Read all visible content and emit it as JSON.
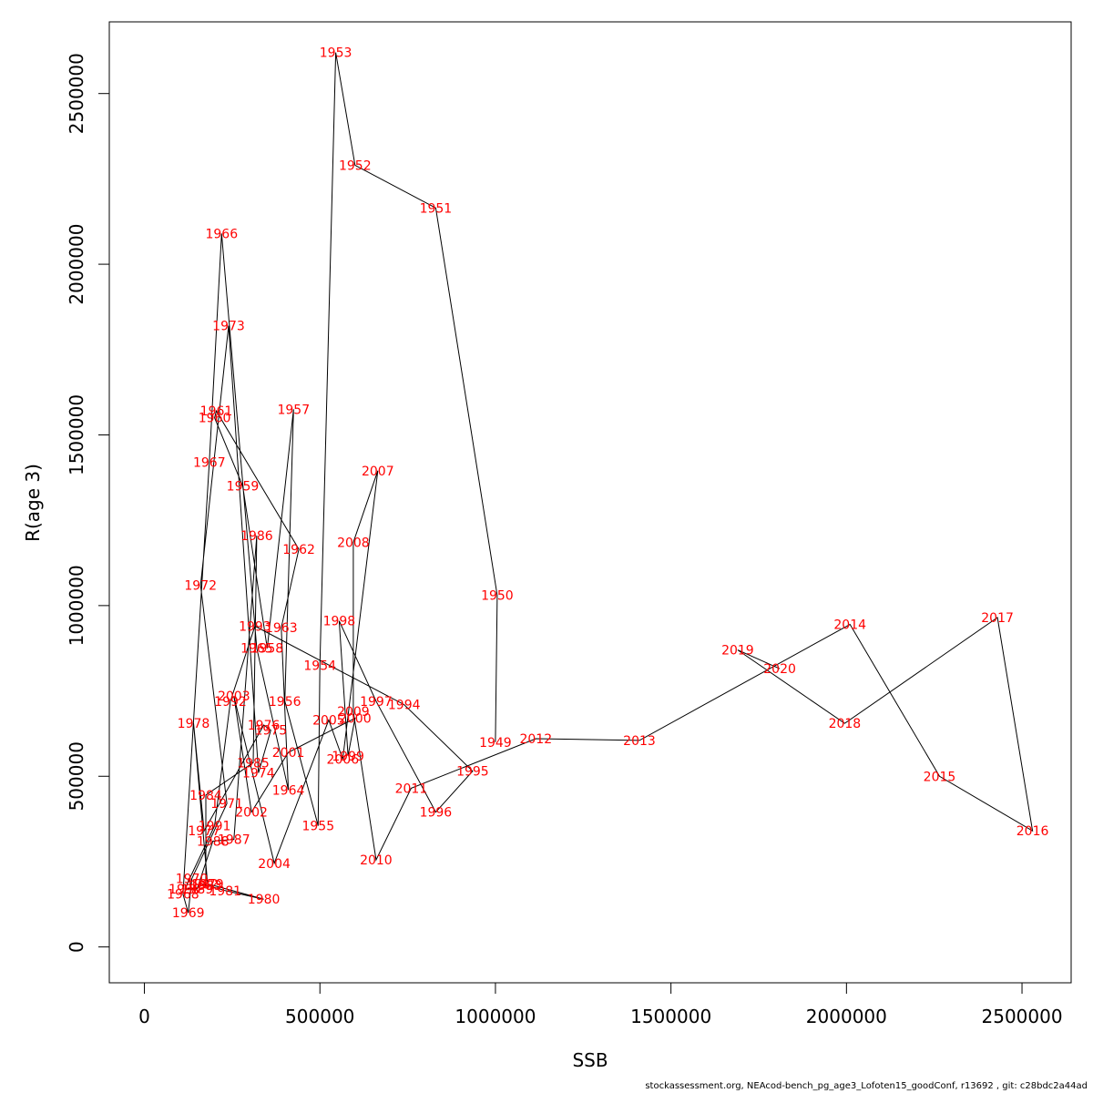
{
  "footer": "stockassessment.org, NEAcod-bench_pg_age3_Lofoten15_goodConf, r13692 , git: c28bdc2a44ad",
  "colors": {
    "label": "#ff0000",
    "line": "#000000",
    "axis": "#000000"
  },
  "chart_data": {
    "type": "line",
    "xlabel": "SSB",
    "ylabel": "R(age 3)",
    "xlim": [
      -100000,
      2640000
    ],
    "ylim": [
      -105000,
      2710000
    ],
    "xticks": [
      0,
      500000,
      1000000,
      1500000,
      2000000,
      2500000
    ],
    "yticks": [
      0,
      500000,
      1000000,
      1500000,
      2000000,
      2500000
    ],
    "points": [
      {
        "year": "1949",
        "x": 1000000,
        "y": 600000
      },
      {
        "year": "1950",
        "x": 1005000,
        "y": 1030000
      },
      {
        "year": "1951",
        "x": 830000,
        "y": 2165000
      },
      {
        "year": "1952",
        "x": 600000,
        "y": 2290000
      },
      {
        "year": "1953",
        "x": 545000,
        "y": 2620000
      },
      {
        "year": "1954",
        "x": 500000,
        "y": 825000
      },
      {
        "year": "1955",
        "x": 495000,
        "y": 355000
      },
      {
        "year": "1956",
        "x": 400000,
        "y": 720000
      },
      {
        "year": "1957",
        "x": 425000,
        "y": 1575000
      },
      {
        "year": "1958",
        "x": 350000,
        "y": 875000
      },
      {
        "year": "1959",
        "x": 280000,
        "y": 1350000
      },
      {
        "year": "1960",
        "x": 200000,
        "y": 1550000
      },
      {
        "year": "1961",
        "x": 205000,
        "y": 1570000
      },
      {
        "year": "1962",
        "x": 440000,
        "y": 1165000
      },
      {
        "year": "1963",
        "x": 390000,
        "y": 935000
      },
      {
        "year": "1964",
        "x": 410000,
        "y": 460000
      },
      {
        "year": "1965",
        "x": 320000,
        "y": 875000
      },
      {
        "year": "1966",
        "x": 220000,
        "y": 2090000
      },
      {
        "year": "1967",
        "x": 185000,
        "y": 1420000
      },
      {
        "year": "1968",
        "x": 110000,
        "y": 155000
      },
      {
        "year": "1969",
        "x": 125000,
        "y": 100000
      },
      {
        "year": "1970",
        "x": 135000,
        "y": 200000
      },
      {
        "year": "1971",
        "x": 235000,
        "y": 420000
      },
      {
        "year": "1972",
        "x": 160000,
        "y": 1060000
      },
      {
        "year": "1973",
        "x": 240000,
        "y": 1820000
      },
      {
        "year": "1974",
        "x": 325000,
        "y": 510000
      },
      {
        "year": "1975",
        "x": 360000,
        "y": 635000
      },
      {
        "year": "1976",
        "x": 340000,
        "y": 650000
      },
      {
        "year": "1977",
        "x": 170000,
        "y": 340000
      },
      {
        "year": "1978",
        "x": 140000,
        "y": 655000
      },
      {
        "year": "1979",
        "x": 180000,
        "y": 185000
      },
      {
        "year": "1980",
        "x": 340000,
        "y": 140000
      },
      {
        "year": "1981",
        "x": 230000,
        "y": 165000
      },
      {
        "year": "1982",
        "x": 165000,
        "y": 185000
      },
      {
        "year": "1983",
        "x": 175000,
        "y": 180000
      },
      {
        "year": "1984",
        "x": 175000,
        "y": 445000
      },
      {
        "year": "1985",
        "x": 310000,
        "y": 540000
      },
      {
        "year": "1986",
        "x": 320000,
        "y": 1205000
      },
      {
        "year": "1987",
        "x": 255000,
        "y": 315000
      },
      {
        "year": "1988",
        "x": 195000,
        "y": 310000
      },
      {
        "year": "1989",
        "x": 150000,
        "y": 170000
      },
      {
        "year": "1990",
        "x": 115000,
        "y": 170000
      },
      {
        "year": "1991",
        "x": 200000,
        "y": 355000
      },
      {
        "year": "1992",
        "x": 245000,
        "y": 720000
      },
      {
        "year": "1993",
        "x": 315000,
        "y": 940000
      },
      {
        "year": "1994",
        "x": 740000,
        "y": 710000
      },
      {
        "year": "1995",
        "x": 935000,
        "y": 515000
      },
      {
        "year": "1996",
        "x": 830000,
        "y": 395000
      },
      {
        "year": "1997",
        "x": 660000,
        "y": 720000
      },
      {
        "year": "1998",
        "x": 555000,
        "y": 955000
      },
      {
        "year": "1999",
        "x": 580000,
        "y": 560000
      },
      {
        "year": "2000",
        "x": 600000,
        "y": 670000
      },
      {
        "year": "2001",
        "x": 410000,
        "y": 570000
      },
      {
        "year": "2002",
        "x": 305000,
        "y": 395000
      },
      {
        "year": "2003",
        "x": 255000,
        "y": 735000
      },
      {
        "year": "2004",
        "x": 370000,
        "y": 245000
      },
      {
        "year": "2005",
        "x": 525000,
        "y": 665000
      },
      {
        "year": "2006",
        "x": 565000,
        "y": 550000
      },
      {
        "year": "2007",
        "x": 665000,
        "y": 1395000
      },
      {
        "year": "2008",
        "x": 595000,
        "y": 1185000
      },
      {
        "year": "2009",
        "x": 595000,
        "y": 690000
      },
      {
        "year": "2010",
        "x": 660000,
        "y": 255000
      },
      {
        "year": "2011",
        "x": 760000,
        "y": 465000
      },
      {
        "year": "2012",
        "x": 1115000,
        "y": 610000
      },
      {
        "year": "2013",
        "x": 1410000,
        "y": 605000
      },
      {
        "year": "2014",
        "x": 2010000,
        "y": 945000
      },
      {
        "year": "2015",
        "x": 2265000,
        "y": 500000
      },
      {
        "year": "2016",
        "x": 2530000,
        "y": 340000
      },
      {
        "year": "2017",
        "x": 2430000,
        "y": 965000
      },
      {
        "year": "2018",
        "x": 1995000,
        "y": 655000
      },
      {
        "year": "2019",
        "x": 1690000,
        "y": 870000
      },
      {
        "year": "2020",
        "x": 1810000,
        "y": 815000
      }
    ]
  }
}
